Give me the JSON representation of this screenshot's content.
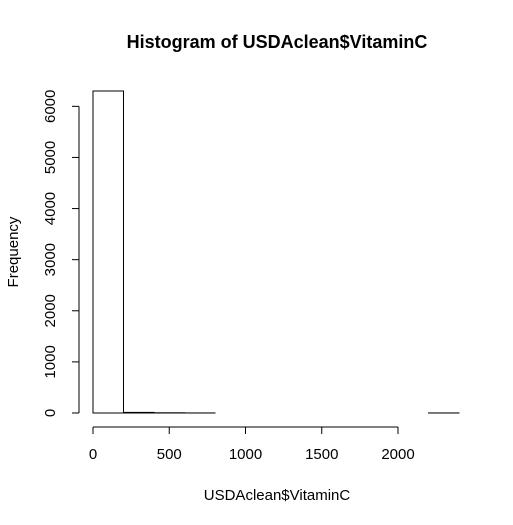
{
  "chart_data": {
    "type": "bar",
    "title": "Histogram of USDAclean$VitaminC",
    "xlabel": "USDAclean$VitaminC",
    "ylabel": "Frequency",
    "bins": [
      {
        "start": 0,
        "end": 200,
        "count": 6300
      },
      {
        "start": 200,
        "end": 400,
        "count": 12
      },
      {
        "start": 400,
        "end": 600,
        "count": 4
      },
      {
        "start": 600,
        "end": 800,
        "count": 1
      },
      {
        "start": 800,
        "end": 1000,
        "count": 0
      },
      {
        "start": 1000,
        "end": 1200,
        "count": 0
      },
      {
        "start": 1200,
        "end": 1400,
        "count": 0
      },
      {
        "start": 1400,
        "end": 1600,
        "count": 0
      },
      {
        "start": 1600,
        "end": 1800,
        "count": 0
      },
      {
        "start": 1800,
        "end": 2000,
        "count": 0
      },
      {
        "start": 2000,
        "end": 2200,
        "count": 0
      },
      {
        "start": 2200,
        "end": 2400,
        "count": 1
      }
    ],
    "xticks": [
      0,
      500,
      1000,
      1500,
      2000
    ],
    "xtick_labels": [
      "0",
      "500",
      "1000",
      "1500",
      "2000"
    ],
    "yticks": [
      0,
      1000,
      2000,
      3000,
      4000,
      5000,
      6000
    ],
    "ytick_labels": [
      "0",
      "1000",
      "2000",
      "3000",
      "4000",
      "5000",
      "6000"
    ],
    "xlim": [
      0,
      2400
    ],
    "ylim": [
      0,
      6300
    ],
    "grid": false,
    "legend": "none"
  }
}
